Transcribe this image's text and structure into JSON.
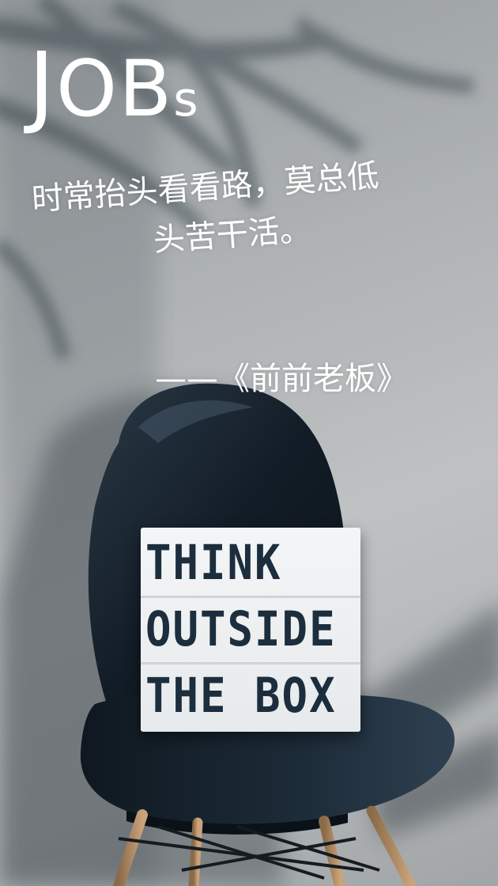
{
  "title": {
    "part1": "J",
    "part2": "OB",
    "part3": "s"
  },
  "quote": {
    "line1": "时常抬头看看路，莫总低",
    "line2": "头苦干活。"
  },
  "author": "——《前前老板》",
  "lightbox": {
    "row1": "THINK",
    "row2": "OUTSIDE",
    "row3": "THE BOX"
  },
  "colors": {
    "text": "#ffffff",
    "chair": "#16222e",
    "wall": "#b8bbbd",
    "lightbox_letters": "#1c2e3d"
  }
}
